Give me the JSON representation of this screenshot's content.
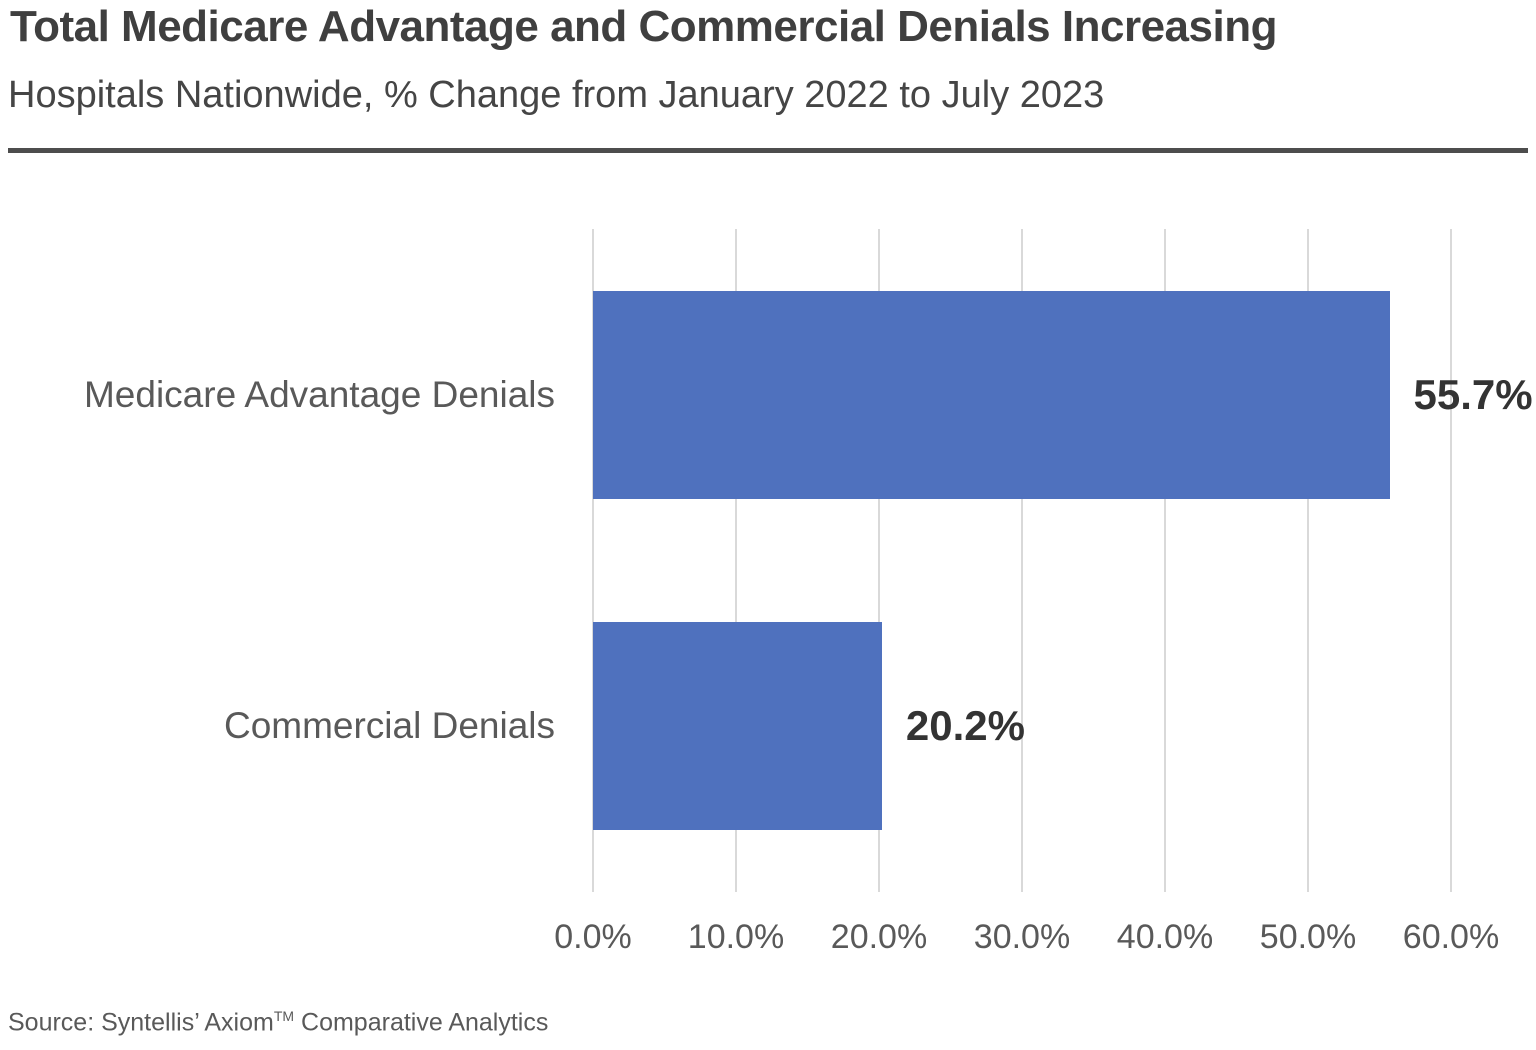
{
  "header": {
    "title": "Total Medicare Advantage and Commercial Denials Increasing",
    "subtitle": "Hospitals Nationwide, % Change from January 2022 to July 2023"
  },
  "chart_data": {
    "type": "bar",
    "orientation": "horizontal",
    "title": "Total Medicare Advantage and Commercial Denials Increasing",
    "subtitle": "Hospitals Nationwide, % Change from January 2022 to July 2023",
    "categories": [
      "Medicare Advantage Denials",
      "Commercial Denials"
    ],
    "values": [
      55.7,
      20.2
    ],
    "value_labels": [
      "55.7%",
      "20.2%"
    ],
    "xlabel": "",
    "ylabel": "",
    "xlim": [
      0,
      60
    ],
    "x_ticks": [
      0,
      10,
      20,
      30,
      40,
      50,
      60
    ],
    "x_tick_labels": [
      "0.0%",
      "10.0%",
      "20.0%",
      "30.0%",
      "40.0%",
      "50.0%",
      "60.0%"
    ],
    "grid": "vertical",
    "legend": "none",
    "bar_color": "#4F71BE",
    "gridline_color": "#D9D9D9"
  },
  "footer": {
    "source": {
      "prefix": "Source: Syntellis’ Axiom",
      "superscript": "TM",
      "suffix": " Comparative Analytics"
    }
  },
  "colors": {
    "bar": "#4F71BE",
    "title_text": "#3F3F3F",
    "label_text": "#595959",
    "value_text": "#333333",
    "divider": "#4D4D4D",
    "gridline": "#D9D9D9"
  }
}
